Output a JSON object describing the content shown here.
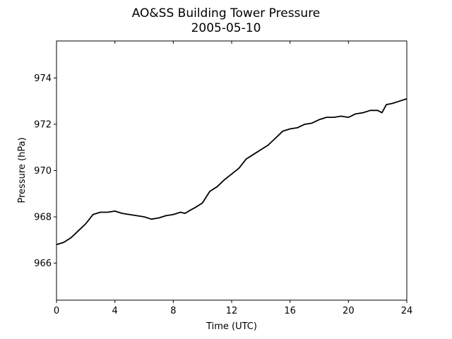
{
  "chart_data": {
    "type": "line",
    "title": "AO&SS Building Tower Pressure",
    "subtitle": "2005-05-10",
    "xlabel": "Time (UTC)",
    "ylabel": "Pressure (hPa)",
    "xlim": [
      0,
      24
    ],
    "ylim": [
      964.4,
      975.6
    ],
    "xticks": [
      0,
      4,
      8,
      12,
      16,
      20,
      24
    ],
    "yticks": [
      966,
      968,
      970,
      972,
      974
    ],
    "grid": false,
    "series": [
      {
        "color": "#000000",
        "x": [
          0,
          0.5,
          1,
          1.5,
          2,
          2.5,
          3,
          3.5,
          4,
          4.5,
          5,
          5.5,
          6,
          6.5,
          7,
          7.5,
          8,
          8.5,
          8.8,
          9.2,
          9.5,
          10,
          10.5,
          11,
          11.5,
          12,
          12.5,
          13,
          13.5,
          14,
          14.5,
          15,
          15.5,
          16,
          16.5,
          17,
          17.5,
          18,
          18.5,
          19,
          19.5,
          20,
          20.5,
          21,
          21.5,
          22,
          22.3,
          22.6,
          23,
          23.5,
          24
        ],
        "y": [
          966.8,
          966.9,
          967.1,
          967.4,
          967.7,
          968.1,
          968.2,
          968.2,
          968.25,
          968.15,
          968.1,
          968.05,
          968.0,
          967.9,
          967.95,
          968.05,
          968.1,
          968.2,
          968.15,
          968.3,
          968.4,
          968.6,
          969.1,
          969.3,
          969.6,
          969.85,
          970.1,
          970.5,
          970.7,
          970.9,
          971.1,
          971.4,
          971.7,
          971.8,
          971.85,
          972.0,
          972.05,
          972.2,
          972.3,
          972.3,
          972.35,
          972.3,
          972.45,
          972.5,
          972.6,
          972.6,
          972.5,
          972.85,
          972.9,
          973.0,
          973.1
        ]
      }
    ]
  }
}
